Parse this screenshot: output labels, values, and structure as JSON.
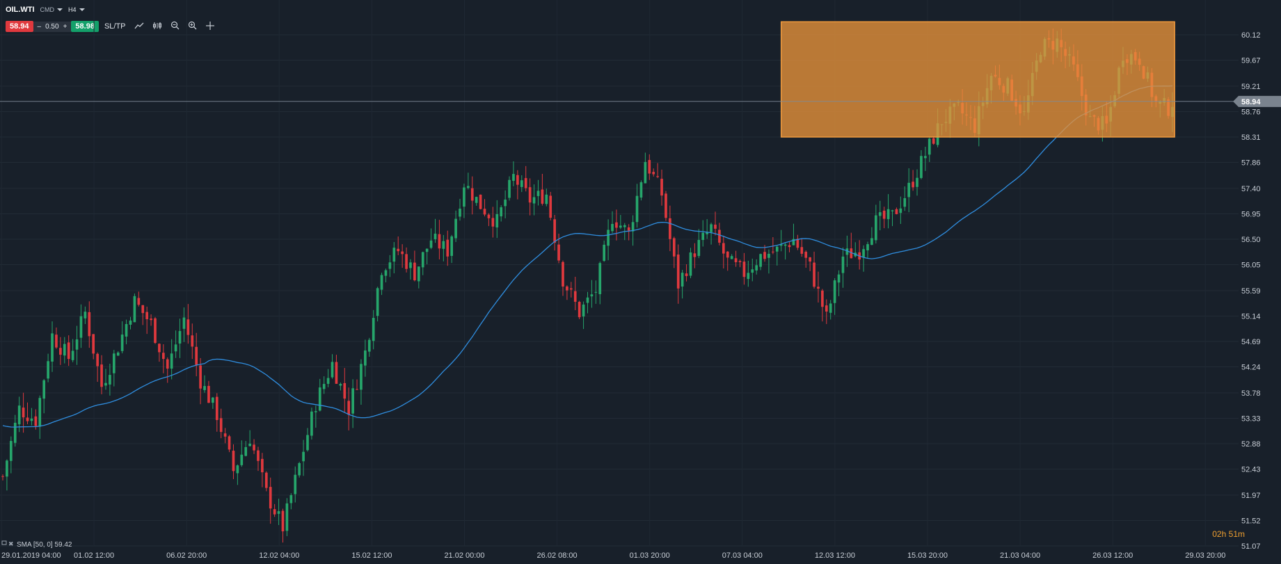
{
  "header": {
    "symbol": "OIL.WTI",
    "market_type": "CMD",
    "timeframe": "H4",
    "sell_price": "58.94",
    "volume_minus": "–",
    "volume": "0.50",
    "volume_plus": "+",
    "buy_price": "58.98",
    "sltp_label": "SL/TP"
  },
  "indicator_label": "SMA [50, 0] 59.42",
  "timer": {
    "hours": "02",
    "h_unit": "h",
    "minutes": "51",
    "m_unit": "m"
  },
  "colors": {
    "bull": "#26a66b",
    "bear": "#e0393e",
    "sma": "#2f8ee0",
    "zone": "#e8923a",
    "bg": "#18202a"
  },
  "chart_data": {
    "type": "candlestick",
    "current_price": 58.94,
    "y_ticks": [
      "60.12",
      "59.67",
      "59.21",
      "58.76",
      "58.31",
      "57.86",
      "57.40",
      "56.95",
      "56.50",
      "56.05",
      "55.59",
      "55.14",
      "54.69",
      "54.24",
      "53.78",
      "53.33",
      "52.88",
      "52.43",
      "51.97",
      "51.52",
      "51.07"
    ],
    "x_ticks": [
      "29.01.2019 04:00",
      "01.02 12:00",
      "06.02 20:00",
      "12.02 04:00",
      "15.02 12:00",
      "21.02 00:00",
      "26.02 08:00",
      "01.03 20:00",
      "07.03 04:00",
      "12.03 12:00",
      "15.03 20:00",
      "21.03 04:00",
      "26.03 12:00",
      "29.03 20:00"
    ],
    "ylim": [
      51.0,
      60.5
    ],
    "highlight_zone": {
      "price_low": 58.31,
      "price_high": 60.35
    },
    "sma": {
      "period": 50,
      "value": 59.42
    },
    "price_path": [
      52.3,
      53.5,
      53.3,
      54.8,
      54.4,
      55.2,
      53.9,
      54.6,
      55.4,
      55.0,
      54.2,
      55.1,
      54.0,
      53.4,
      52.4,
      53.0,
      52.0,
      51.4,
      52.5,
      53.6,
      54.3,
      53.5,
      54.5,
      56.0,
      56.3,
      55.9,
      56.5,
      56.3,
      57.5,
      57.1,
      56.8,
      57.6,
      57.2,
      57.3,
      55.8,
      55.2,
      55.6,
      56.9,
      56.6,
      57.9,
      57.3,
      55.7,
      56.3,
      56.7,
      56.1,
      55.9,
      56.2,
      56.3,
      56.5,
      56.0,
      55.1,
      56.2,
      56.3,
      56.8,
      56.9,
      57.4,
      58.0,
      58.6,
      58.8,
      58.5,
      59.4,
      59.2,
      58.7,
      59.9,
      60.0,
      59.5,
      58.6,
      58.5,
      59.8,
      59.7,
      58.9,
      58.8
    ]
  }
}
